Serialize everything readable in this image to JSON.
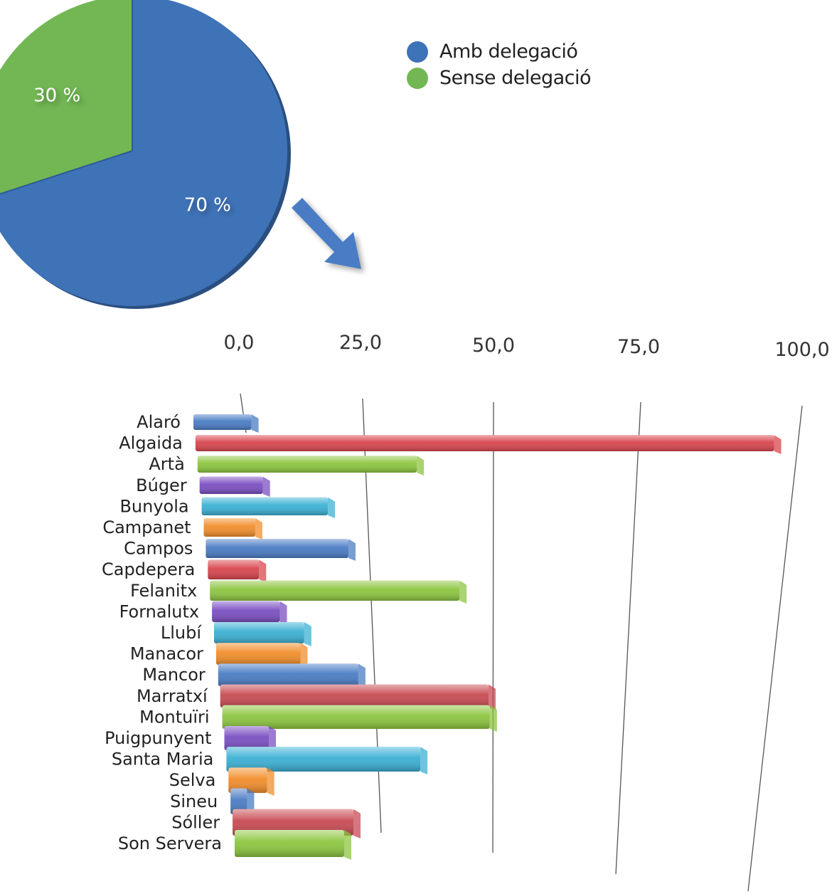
{
  "chart_data": [
    {
      "type": "pie",
      "title": "",
      "slices": [
        {
          "name": "Amb delegació",
          "value": 70,
          "label": "70 %",
          "color": "#3f73b8"
        },
        {
          "name": "Sense delegació",
          "value": 30,
          "label": "30 %",
          "color": "#72b754"
        }
      ],
      "legend": {
        "position": "top-right"
      }
    },
    {
      "type": "bar",
      "orientation": "horizontal",
      "style": "3d-perspective",
      "title": "",
      "xlabel": "",
      "ylabel": "",
      "xlim": [
        0,
        100
      ],
      "x_ticks": [
        "0,0",
        "25,0",
        "50,0",
        "75,0",
        "100,0"
      ],
      "grid": true,
      "categories": [
        "Alaró",
        "Algaida",
        "Artà",
        "Búger",
        "Bunyola",
        "Campanet",
        "Campos",
        "Capdepera",
        "Felanitx",
        "Fornalutx",
        "Llubí",
        "Manacor",
        "Mancor",
        "Marratxí",
        "Montuïri",
        "Puigpunyent",
        "Santa Maria",
        "Selva",
        "Sineu",
        "Sóller",
        "Son Servera"
      ],
      "values": [
        10,
        100,
        38,
        11,
        22,
        9,
        25,
        9,
        44,
        12,
        16,
        15,
        25,
        48,
        48,
        8,
        35,
        7,
        3,
        22,
        20
      ],
      "colors": [
        "#4a7cc4",
        "#d9464e",
        "#8cc63f",
        "#7b4fc2",
        "#3bb0d4",
        "#f28e2b",
        "#4a7cc4",
        "#d9464e",
        "#8cc63f",
        "#7b4fc2",
        "#3bb0d4",
        "#f28e2b",
        "#4a7cc4",
        "#c84a52",
        "#8cc63f",
        "#7b4fc2",
        "#3bb0d4",
        "#f28e2b",
        "#4a7cc4",
        "#c84a52",
        "#8cc63f"
      ]
    }
  ]
}
